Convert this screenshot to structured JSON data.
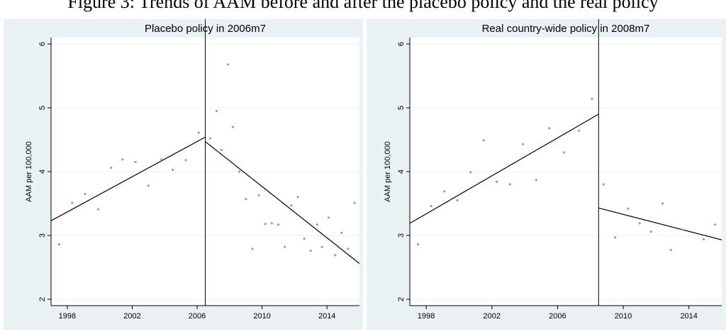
{
  "figure": {
    "title": "Figure 3: Trends of AAM before and after the placebo policy and the real policy"
  },
  "chart_data": [
    {
      "type": "scatter",
      "title": "Placebo policy in 2006m7",
      "xlabel": "",
      "ylabel": "AAM per 100,000",
      "xlim": [
        1997.0,
        2016.0
      ],
      "ylim": [
        1.9,
        6.1
      ],
      "xticks": [
        1998,
        2002,
        2006,
        2010,
        2014
      ],
      "yticks": [
        2,
        3,
        4,
        5,
        6
      ],
      "grid": "horizontal",
      "cutoff": 2006.5,
      "colors": {
        "points": "#9e9e9e",
        "lines": "#000000",
        "background": "#eaf2f3"
      },
      "points": {
        "x": [
          1997.5,
          1998.3,
          1999.1,
          1999.9,
          2000.7,
          2001.4,
          2002.2,
          2003.0,
          2003.8,
          2004.5,
          2005.3,
          2006.1,
          2006.8,
          2007.2,
          2007.5,
          2007.9,
          2008.2,
          2008.6,
          2009.0,
          2009.4,
          2009.8,
          2010.2,
          2010.6,
          2011.0,
          2011.4,
          2011.8,
          2012.2,
          2012.6,
          2013.0,
          2013.4,
          2013.7,
          2014.1,
          2014.5,
          2014.9,
          2015.3,
          2015.7
        ],
        "y": [
          2.86,
          3.51,
          3.65,
          3.41,
          4.06,
          4.19,
          4.15,
          3.78,
          4.19,
          4.03,
          4.18,
          4.61,
          4.52,
          4.95,
          4.34,
          5.68,
          4.7,
          4.0,
          3.57,
          2.79,
          3.63,
          3.18,
          3.19,
          3.17,
          2.82,
          3.47,
          3.6,
          2.95,
          2.76,
          3.17,
          2.82,
          3.28,
          2.69,
          3.04,
          2.79,
          3.51
        ]
      },
      "fit_lines": [
        {
          "x": [
            1997.0,
            2006.5
          ],
          "y": [
            3.23,
            4.54
          ]
        },
        {
          "x": [
            2006.5,
            2016.0
          ],
          "y": [
            4.47,
            2.56
          ]
        }
      ]
    },
    {
      "type": "scatter",
      "title": "Real country-wide policy in 2008m7",
      "xlabel": "",
      "ylabel": "AAM per 100,000",
      "xlim": [
        1997.0,
        2016.0
      ],
      "ylim": [
        1.9,
        6.1
      ],
      "xticks": [
        1998,
        2002,
        2006,
        2010,
        2014
      ],
      "yticks": [
        2,
        3,
        4,
        5,
        6
      ],
      "grid": "horizontal",
      "cutoff": 2008.5,
      "colors": {
        "points": "#9e9e9e",
        "lines": "#000000",
        "background": "#eaf2f3"
      },
      "points": {
        "x": [
          1997.5,
          1998.3,
          1999.1,
          1999.9,
          2000.7,
          2001.5,
          2002.3,
          2003.1,
          2003.9,
          2004.7,
          2005.5,
          2006.4,
          2007.3,
          2008.1,
          2008.8,
          2009.5,
          2010.3,
          2011.0,
          2011.7,
          2012.4,
          2012.9,
          2013.6,
          2014.9,
          2015.6
        ],
        "y": [
          2.86,
          3.46,
          3.69,
          3.55,
          3.99,
          4.49,
          3.84,
          3.8,
          4.43,
          3.87,
          4.68,
          4.3,
          4.64,
          5.14,
          3.8,
          2.97,
          3.42,
          3.19,
          3.06,
          3.5,
          2.77,
          3.09,
          2.94,
          3.17
        ]
      },
      "fit_lines": [
        {
          "x": [
            1997.0,
            2008.5
          ],
          "y": [
            3.19,
            4.9
          ]
        },
        {
          "x": [
            2008.5,
            2016.0
          ],
          "y": [
            3.43,
            2.93
          ]
        }
      ]
    }
  ]
}
